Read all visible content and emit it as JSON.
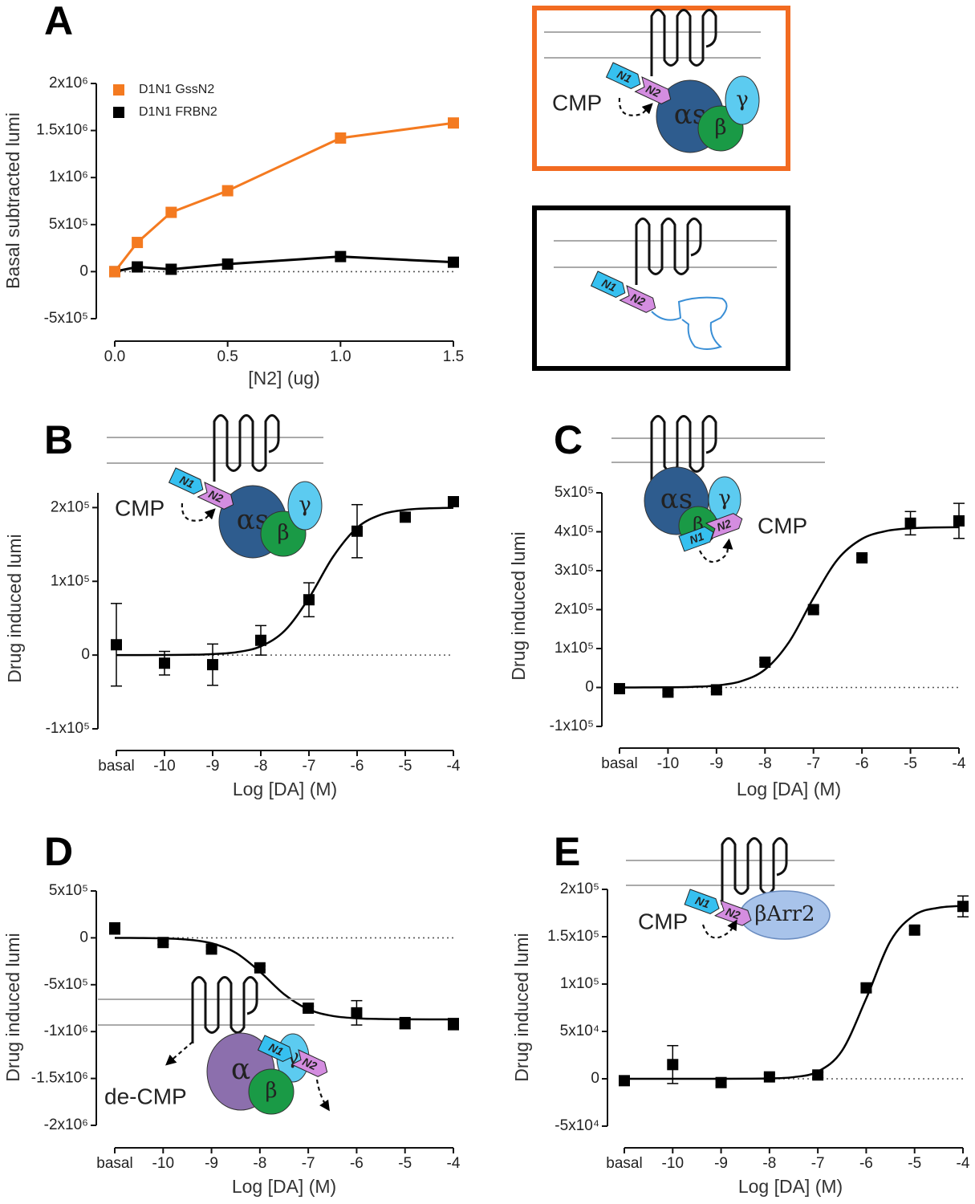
{
  "chart_data": [
    {
      "type": "line",
      "panel": "A",
      "x": [
        0,
        0.1,
        0.25,
        0.5,
        1.0,
        1.5
      ],
      "series": [
        {
          "name": "D1N1 GssN2",
          "color": "#f47a20",
          "values": [
            0,
            310000,
            630000,
            860000,
            1420000,
            1580000
          ]
        },
        {
          "name": "D1N1 FRBN2",
          "color": "#000000",
          "values": [
            0,
            50000,
            25000,
            80000,
            160000,
            100000
          ]
        }
      ],
      "xlabel": "[N2] (ug)",
      "ylabel": "Basal subtracted lumi",
      "xlim": [
        0,
        1.5
      ],
      "ylim": [
        -500000,
        2000000
      ],
      "xticks": [
        {
          "value": 0,
          "label": "0.0"
        },
        0.5,
        {
          "value": 1,
          "label": "1.0"
        },
        1.5
      ],
      "yticks": [
        {
          "value": -500000,
          "label": "-5x10⁵"
        },
        0,
        {
          "value": 500000,
          "label": "5x10⁵"
        },
        {
          "value": 1000000,
          "label": "1x10⁶"
        },
        {
          "value": 1500000,
          "label": "1.5x10⁶"
        },
        {
          "value": 2000000,
          "label": "2x10⁶"
        }
      ],
      "zero_line": true,
      "legend": "top-left"
    },
    {
      "type": "dose-response",
      "panel": "B",
      "color": "#000000",
      "x": [
        -11,
        -10,
        -9,
        -8,
        -7,
        -6,
        -5,
        -4
      ],
      "values": [
        14000,
        -11000,
        -13000,
        20000,
        75000,
        168000,
        187000,
        208000
      ],
      "errors": [
        56000,
        16000,
        28000,
        20000,
        23000,
        36000,
        5000,
        4000
      ],
      "fit_x": [
        -11,
        -10.5,
        -10,
        -9.5,
        -9,
        -8.5,
        -8,
        -7.5,
        -7,
        -6.5,
        -6,
        -5.5,
        -5,
        -4.5,
        -4
      ],
      "fit_values": [
        0,
        0,
        100,
        400,
        1300,
        3900,
        11900,
        33300,
        77400,
        133200,
        172700,
        190500,
        196900,
        199000,
        199700
      ],
      "xlabel": "Log [DA] (M)",
      "ylabel": "Drug induced lumi",
      "xlim": [
        -11,
        -4
      ],
      "ylim": [
        -100000,
        220000
      ],
      "xticks": [
        {
          "value": -11,
          "label": "basal"
        },
        -10,
        -9,
        -8,
        -7,
        -6,
        -5,
        -4
      ],
      "yticks": [
        {
          "value": -100000,
          "label": "-1x10⁵"
        },
        0,
        {
          "value": 100000,
          "label": "1x10⁵"
        },
        {
          "value": 200000,
          "label": "2x10⁵"
        }
      ],
      "zero_line": true
    },
    {
      "type": "dose-response",
      "panel": "C",
      "color": "#000000",
      "x": [
        -11,
        -10,
        -9,
        -8,
        -7,
        -6,
        -5,
        -4
      ],
      "values": [
        -3000,
        -12000,
        -6000,
        65000,
        200000,
        333000,
        422000,
        428000
      ],
      "errors": [
        5000,
        5000,
        5000,
        5000,
        8000,
        8000,
        30000,
        45000
      ],
      "fit_x": [
        -11,
        -10.5,
        -10,
        -9.5,
        -9,
        -8.5,
        -8,
        -7.5,
        -7,
        -6.5,
        -6,
        -5.5,
        -5,
        -4.5,
        -4
      ],
      "fit_values": [
        0,
        200,
        500,
        1600,
        5100,
        15800,
        46100,
        117400,
        229600,
        329300,
        381700,
        401900,
        408800,
        411000,
        411600
      ],
      "xlabel": "Log [DA] (M)",
      "ylabel": "Drug induced lumi",
      "xlim": [
        -11,
        -4
      ],
      "ylim": [
        -100000,
        500000
      ],
      "xticks": [
        {
          "value": -11,
          "label": "basal"
        },
        -10,
        -9,
        -8,
        -7,
        -6,
        -5,
        -4
      ],
      "yticks": [
        {
          "value": -100000,
          "label": "-1x10⁵"
        },
        0,
        {
          "value": 100000,
          "label": "1x10⁵"
        },
        {
          "value": 200000,
          "label": "2x10⁵"
        },
        {
          "value": 300000,
          "label": "3x10⁵"
        },
        {
          "value": 400000,
          "label": "4x10⁵"
        },
        {
          "value": 500000,
          "label": "5x10⁵"
        }
      ],
      "zero_line": true
    },
    {
      "type": "dose-response",
      "panel": "D",
      "color": "#000000",
      "x": [
        -11,
        -10,
        -9,
        -8,
        -7,
        -6,
        -5,
        -4
      ],
      "values": [
        100000,
        -50000,
        -120000,
        -320000,
        -750000,
        -800000,
        -910000,
        -920000
      ],
      "errors": [
        60000,
        20000,
        20000,
        20000,
        20000,
        130000,
        60000,
        60000
      ],
      "fit_x": [
        -11,
        -10.5,
        -10,
        -9.5,
        -9,
        -8.5,
        -8,
        -7.5,
        -7,
        -6.5,
        -6,
        -5.5,
        -5,
        -4.5,
        -4
      ],
      "fit_values": [
        -600,
        -1900,
        -6100,
        -19000,
        -57600,
        -159000,
        -361000,
        -601000,
        -762000,
        -833000,
        -858000,
        -866000,
        -869000,
        -870000,
        -870000
      ],
      "xlabel": "Log [DA] (M)",
      "ylabel": "Drug induced lumi",
      "xlim": [
        -11,
        -4
      ],
      "ylim": [
        -2000000,
        500000
      ],
      "xticks": [
        {
          "value": -11,
          "label": "basal"
        },
        -10,
        -9,
        -8,
        -7,
        -6,
        -5,
        -4
      ],
      "yticks": [
        {
          "value": -2000000,
          "label": "-2x10⁶"
        },
        {
          "value": -1500000,
          "label": "-1.5x10⁶"
        },
        {
          "value": -1000000,
          "label": "-1x10⁶"
        },
        {
          "value": -500000,
          "label": "-5x10⁵"
        },
        0,
        {
          "value": 500000,
          "label": "5x10⁵"
        }
      ],
      "zero_line": true
    },
    {
      "type": "dose-response",
      "panel": "E",
      "color": "#000000",
      "x": [
        -11,
        -10,
        -9,
        -8,
        -7,
        -6,
        -5,
        -4
      ],
      "values": [
        -2000,
        15000,
        -4000,
        2000,
        4000,
        96000,
        157000,
        182000
      ],
      "errors": [
        3000,
        20000,
        3000,
        3000,
        3000,
        4000,
        4000,
        11000
      ],
      "fit_x": [
        -11,
        -10.5,
        -10,
        -9.5,
        -9,
        -8.5,
        -8,
        -7.5,
        -7,
        -6.5,
        -6,
        -5.5,
        -5,
        -4.5,
        -4
      ],
      "fit_values": [
        0,
        0,
        0,
        0,
        0,
        90,
        400,
        1750,
        7600,
        29600,
        84700,
        145200,
        172900,
        180600,
        182500
      ],
      "xlabel": "Log [DA] (M)",
      "ylabel": "Drug induced lumi",
      "xlim": [
        -11,
        -4
      ],
      "ylim": [
        -50000,
        200000
      ],
      "xticks": [
        {
          "value": -11,
          "label": "basal"
        },
        -10,
        -9,
        -8,
        -7,
        -6,
        -5,
        -4
      ],
      "yticks": [
        {
          "value": -50000,
          "label": "-5x10⁴"
        },
        0,
        {
          "value": 50000,
          "label": "5x10⁴"
        },
        {
          "value": 100000,
          "label": "1x10⁵"
        },
        {
          "value": 150000,
          "label": "1.5x10⁵"
        },
        {
          "value": 200000,
          "label": "2x10⁵"
        }
      ],
      "zero_line": true
    }
  ],
  "diagrams": [
    {
      "labels": [
        "N1",
        "N2",
        "αs",
        "γ",
        "β",
        "CMP"
      ],
      "border": "#f26b21"
    },
    {
      "labels": [
        "N1",
        "N2"
      ],
      "border": "#000000"
    },
    {
      "labels": [
        "N1",
        "N2",
        "αs",
        "γ",
        "β",
        "CMP"
      ]
    },
    {
      "labels": [
        "αs",
        "γ",
        "β",
        "N1",
        "N2",
        "CMP"
      ]
    },
    {
      "labels": [
        "α",
        "γ",
        "β",
        "N1",
        "N2",
        "de-CMP"
      ]
    },
    {
      "labels": [
        "N1",
        "N2",
        "βArr2",
        "CMP"
      ]
    }
  ]
}
